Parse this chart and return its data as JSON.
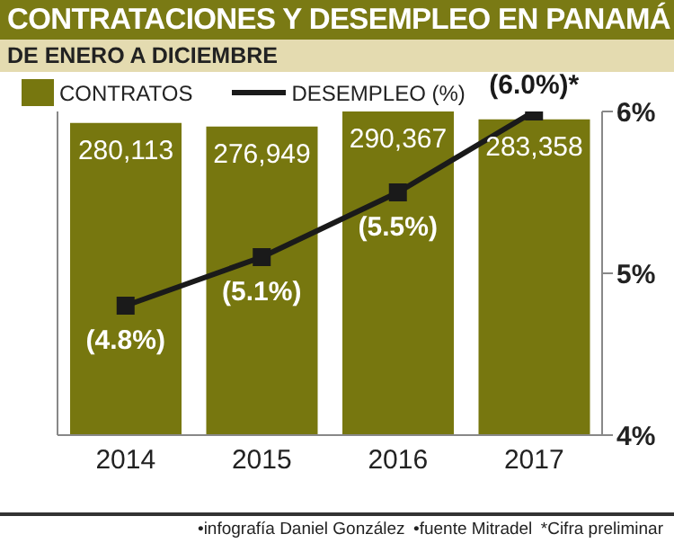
{
  "chart_data": {
    "type": "bar",
    "title": "CONTRATACIONES Y DESEMPLEO EN PANAMÁ",
    "subtitle": "DE ENERO A DICIEMBRE",
    "categories": [
      "2014",
      "2015",
      "2016",
      "2017"
    ],
    "series": [
      {
        "name": "CONTRATOS",
        "color": "#77770f",
        "values": [
          280113,
          276949,
          290367,
          283358
        ],
        "value_labels": [
          "280,113",
          "276,949",
          "290,367",
          "283,358"
        ]
      },
      {
        "name": "DESEMPLEO (%)",
        "type": "line",
        "axis": "y2",
        "color": "#1a1a1a",
        "values": [
          4.8,
          5.1,
          5.5,
          6.0
        ],
        "value_labels": [
          "(4.8%)",
          "(5.1%)",
          "(5.5%)",
          "(6.0%)*"
        ]
      }
    ],
    "y2lim": [
      4,
      6
    ],
    "y2ticks": [
      {
        "value": 4,
        "label": "4%"
      },
      {
        "value": 5,
        "label": "5%"
      },
      {
        "value": 6,
        "label": "6%"
      }
    ],
    "marker": "square",
    "legend": "top left",
    "grid": false,
    "annotations": [
      "•infografía Daniel González",
      "•fuente Mitradel",
      "*Cifra preliminar"
    ]
  }
}
